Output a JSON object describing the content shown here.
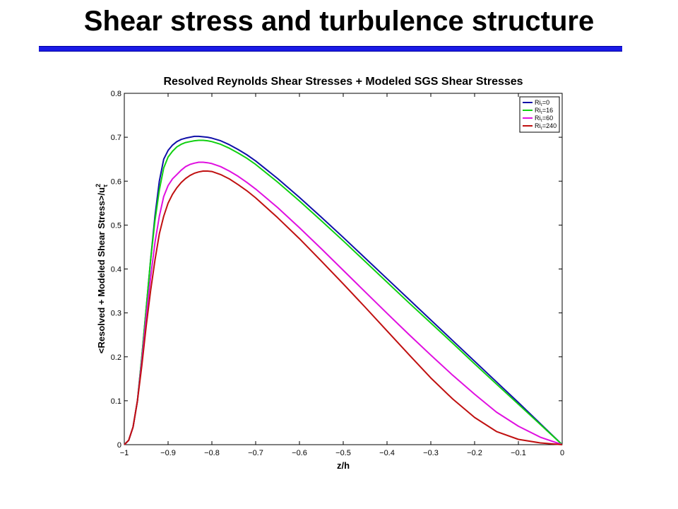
{
  "slide": {
    "title": "Shear stress and turbulence structure",
    "accent_color": "#1a1ae6"
  },
  "chart_data": {
    "type": "line",
    "title": "Resolved Reynolds Shear Stresses + Modeled SGS Shear Stresses",
    "xlabel": "z/h",
    "ylabel_main": "<Resolved + Modeled Shear Stress>/u",
    "ylabel_sup": "2",
    "ylabel_sub": "τ",
    "xlim": [
      -1,
      0
    ],
    "ylim": [
      0,
      0.8
    ],
    "xticks": [
      -1,
      -0.9,
      -0.8,
      -0.7,
      -0.6,
      -0.5,
      -0.4,
      -0.3,
      -0.2,
      -0.1,
      0
    ],
    "xtick_labels": [
      "−1",
      "−0.9",
      "−0.8",
      "−0.7",
      "−0.6",
      "−0.5",
      "−0.4",
      "−0.3",
      "−0.2",
      "−0.1",
      "0"
    ],
    "yticks": [
      0,
      0.1,
      0.2,
      0.3,
      0.4,
      0.5,
      0.6,
      0.7,
      0.8
    ],
    "ytick_labels": [
      "0",
      "0.1",
      "0.2",
      "0.3",
      "0.4",
      "0.5",
      "0.6",
      "0.7",
      "0.8"
    ],
    "grid": false,
    "legend_position": "top-right",
    "series": [
      {
        "name": "Riτ=0",
        "name_base": "Ri",
        "name_sub": "τ",
        "name_rest": "=0",
        "color": "#1010a8",
        "x": [
          -1,
          -0.99,
          -0.98,
          -0.97,
          -0.96,
          -0.95,
          -0.94,
          -0.93,
          -0.92,
          -0.91,
          -0.9,
          -0.89,
          -0.88,
          -0.87,
          -0.86,
          -0.85,
          -0.84,
          -0.83,
          -0.82,
          -0.81,
          -0.8,
          -0.78,
          -0.76,
          -0.74,
          -0.72,
          -0.7,
          -0.65,
          -0.6,
          -0.55,
          -0.5,
          -0.45,
          -0.4,
          -0.35,
          -0.3,
          -0.25,
          -0.2,
          -0.15,
          -0.1,
          -0.05,
          0
        ],
        "y": [
          0,
          0.01,
          0.04,
          0.1,
          0.2,
          0.31,
          0.42,
          0.52,
          0.6,
          0.65,
          0.67,
          0.682,
          0.69,
          0.695,
          0.698,
          0.7,
          0.702,
          0.702,
          0.701,
          0.7,
          0.698,
          0.692,
          0.683,
          0.672,
          0.66,
          0.646,
          0.606,
          0.563,
          0.518,
          0.472,
          0.425,
          0.378,
          0.331,
          0.284,
          0.237,
          0.19,
          0.143,
          0.096,
          0.048,
          0
        ]
      },
      {
        "name": "Riτ=16",
        "name_base": "Ri",
        "name_sub": "τ",
        "name_rest": "=16",
        "color": "#10d010",
        "x": [
          -1,
          -0.99,
          -0.98,
          -0.97,
          -0.96,
          -0.95,
          -0.94,
          -0.93,
          -0.92,
          -0.91,
          -0.9,
          -0.89,
          -0.88,
          -0.87,
          -0.86,
          -0.85,
          -0.84,
          -0.83,
          -0.82,
          -0.81,
          -0.8,
          -0.78,
          -0.76,
          -0.74,
          -0.72,
          -0.7,
          -0.65,
          -0.6,
          -0.55,
          -0.5,
          -0.45,
          -0.4,
          -0.35,
          -0.3,
          -0.25,
          -0.2,
          -0.15,
          -0.1,
          -0.05,
          0
        ],
        "y": [
          0,
          0.01,
          0.04,
          0.1,
          0.2,
          0.31,
          0.42,
          0.51,
          0.58,
          0.63,
          0.655,
          0.668,
          0.678,
          0.684,
          0.688,
          0.69,
          0.692,
          0.693,
          0.693,
          0.692,
          0.69,
          0.684,
          0.675,
          0.664,
          0.652,
          0.638,
          0.598,
          0.555,
          0.51,
          0.464,
          0.417,
          0.37,
          0.323,
          0.277,
          0.231,
          0.184,
          0.138,
          0.092,
          0.046,
          0
        ]
      },
      {
        "name": "Riτ=60",
        "name_base": "Ri",
        "name_sub": "τ",
        "name_rest": "=60",
        "color": "#e010e0",
        "x": [
          -1,
          -0.99,
          -0.98,
          -0.97,
          -0.96,
          -0.95,
          -0.94,
          -0.93,
          -0.92,
          -0.91,
          -0.9,
          -0.89,
          -0.88,
          -0.87,
          -0.86,
          -0.85,
          -0.84,
          -0.83,
          -0.82,
          -0.81,
          -0.8,
          -0.78,
          -0.76,
          -0.74,
          -0.72,
          -0.7,
          -0.65,
          -0.6,
          -0.55,
          -0.5,
          -0.45,
          -0.4,
          -0.35,
          -0.3,
          -0.25,
          -0.2,
          -0.15,
          -0.1,
          -0.05,
          0
        ],
        "y": [
          0,
          0.01,
          0.04,
          0.1,
          0.19,
          0.29,
          0.38,
          0.46,
          0.52,
          0.565,
          0.59,
          0.605,
          0.615,
          0.625,
          0.633,
          0.638,
          0.641,
          0.643,
          0.643,
          0.642,
          0.64,
          0.633,
          0.623,
          0.611,
          0.597,
          0.582,
          0.54,
          0.494,
          0.446,
          0.397,
          0.348,
          0.299,
          0.251,
          0.204,
          0.158,
          0.115,
          0.074,
          0.042,
          0.017,
          0
        ]
      },
      {
        "name": "Riτ=240",
        "name_base": "Ri",
        "name_sub": "τ",
        "name_rest": "=240",
        "color": "#c01010",
        "x": [
          -1,
          -0.99,
          -0.98,
          -0.97,
          -0.96,
          -0.95,
          -0.94,
          -0.93,
          -0.92,
          -0.91,
          -0.9,
          -0.89,
          -0.88,
          -0.87,
          -0.86,
          -0.85,
          -0.84,
          -0.83,
          -0.82,
          -0.81,
          -0.8,
          -0.78,
          -0.76,
          -0.74,
          -0.72,
          -0.7,
          -0.65,
          -0.6,
          -0.55,
          -0.5,
          -0.45,
          -0.4,
          -0.35,
          -0.3,
          -0.25,
          -0.2,
          -0.15,
          -0.1,
          -0.05,
          0
        ],
        "y": [
          0,
          0.01,
          0.04,
          0.1,
          0.18,
          0.27,
          0.35,
          0.42,
          0.48,
          0.52,
          0.55,
          0.57,
          0.585,
          0.597,
          0.606,
          0.613,
          0.618,
          0.621,
          0.623,
          0.623,
          0.622,
          0.615,
          0.605,
          0.592,
          0.578,
          0.562,
          0.517,
          0.469,
          0.418,
          0.366,
          0.313,
          0.259,
          0.205,
          0.152,
          0.104,
          0.062,
          0.03,
          0.012,
          0.004,
          0
        ]
      }
    ]
  }
}
